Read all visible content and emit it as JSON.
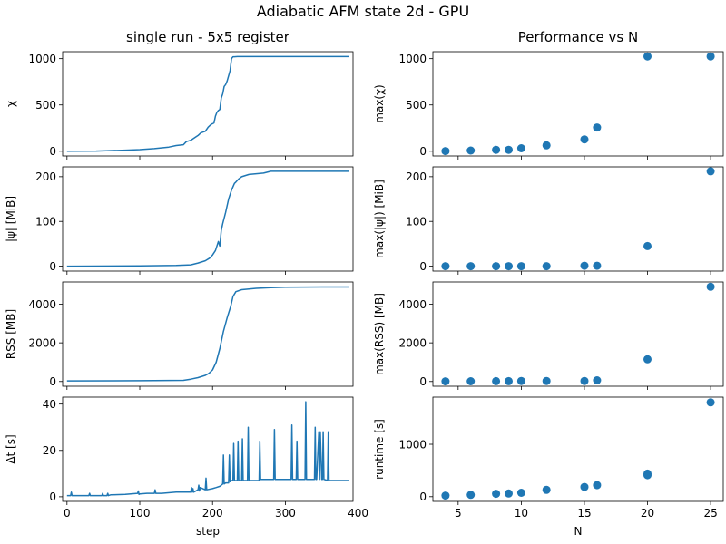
{
  "figure": {
    "suptitle": "Adiabatic AFM state 2d - GPU"
  },
  "chart_data": [
    {
      "id": "chi_step",
      "type": "line",
      "column": "left",
      "title": "single run - 5x5 register",
      "ylabel": "χ",
      "xlabel": "",
      "xlim": [
        -6,
        393
      ],
      "ylim": [
        -51,
        1075
      ],
      "xticks": [
        0,
        100,
        200,
        300,
        400
      ],
      "xtick_labels": [],
      "yticks": [
        0,
        500,
        1000
      ],
      "ytick_labels": [
        "0",
        "500",
        "1000"
      ],
      "x": [
        0,
        40,
        80,
        100,
        120,
        140,
        150,
        160,
        164,
        170,
        176,
        180,
        184,
        190,
        194,
        198,
        202,
        204,
        206,
        208,
        210,
        212,
        214,
        216,
        218,
        220,
        224,
        226,
        228,
        230,
        234,
        250,
        300,
        350,
        388
      ],
      "y": [
        1,
        2,
        12,
        18,
        28,
        45,
        62,
        70,
        104,
        118,
        150,
        170,
        200,
        215,
        260,
        290,
        305,
        380,
        420,
        440,
        450,
        575,
        620,
        700,
        720,
        760,
        870,
        1000,
        1020,
        1020,
        1022,
        1022,
        1022,
        1022,
        1022
      ],
      "color": "#1f77b4"
    },
    {
      "id": "psi_step",
      "type": "line",
      "column": "left",
      "title": "",
      "ylabel": "|ψ| [MiB]",
      "xlabel": "",
      "xlim": [
        -6,
        393
      ],
      "ylim": [
        -11,
        222
      ],
      "xticks": [
        0,
        100,
        200,
        300,
        400
      ],
      "xtick_labels": [],
      "yticks": [
        0,
        100,
        200
      ],
      "ytick_labels": [
        "0",
        "100",
        "200"
      ],
      "x": [
        0,
        100,
        150,
        170,
        180,
        190,
        196,
        200,
        204,
        208,
        210,
        212,
        214,
        218,
        222,
        226,
        230,
        232,
        236,
        240,
        250,
        270,
        280,
        300,
        350,
        388
      ],
      "y": [
        0,
        0.5,
        1.5,
        3,
        7,
        12,
        18,
        25,
        35,
        55,
        45,
        80,
        95,
        120,
        150,
        170,
        185,
        188,
        195,
        200,
        205,
        208,
        212,
        212,
        212,
        212
      ],
      "color": "#1f77b4"
    },
    {
      "id": "rss_step",
      "type": "line",
      "column": "left",
      "title": "",
      "ylabel": "RSS [MB]",
      "xlabel": "",
      "xlim": [
        -6,
        393
      ],
      "ylim": [
        -245,
        5150
      ],
      "xticks": [
        0,
        100,
        200,
        300,
        400
      ],
      "xtick_labels": [],
      "yticks": [
        0,
        2000,
        4000
      ],
      "ytick_labels": [
        "0",
        "2000",
        "4000"
      ],
      "x": [
        0,
        100,
        160,
        170,
        180,
        190,
        195,
        200,
        205,
        210,
        215,
        220,
        225,
        228,
        232,
        240,
        260,
        280,
        300,
        350,
        388
      ],
      "y": [
        30,
        40,
        60,
        120,
        200,
        320,
        420,
        600,
        1000,
        1700,
        2600,
        3300,
        3900,
        4400,
        4650,
        4750,
        4820,
        4860,
        4880,
        4890,
        4890
      ],
      "color": "#1f77b4"
    },
    {
      "id": "dt_step",
      "type": "line",
      "column": "left",
      "title": "",
      "ylabel": "Δt [s]",
      "xlabel": "step",
      "xlim": [
        -6,
        393
      ],
      "ylim": [
        -2,
        43
      ],
      "xticks": [
        0,
        100,
        200,
        300,
        400
      ],
      "xtick_labels": [
        "0",
        "100",
        "200",
        "300",
        "400"
      ],
      "yticks": [
        0,
        20,
        40
      ],
      "ytick_labels": [
        "0",
        "20",
        "40"
      ],
      "x": [
        0,
        5,
        6,
        7,
        10,
        30,
        31,
        32,
        40,
        48,
        49,
        50,
        55,
        56,
        57,
        60,
        80,
        97,
        98,
        99,
        100,
        110,
        120,
        121,
        122,
        130,
        150,
        160,
        170,
        171,
        172,
        173,
        174,
        180,
        181,
        182,
        183,
        190,
        191,
        192,
        200,
        205,
        210,
        214,
        215,
        216,
        218,
        222,
        223,
        224,
        226,
        228,
        229,
        230,
        234,
        235,
        236,
        238,
        240,
        241,
        242,
        244,
        246,
        248,
        249,
        250,
        260,
        264,
        265,
        266,
        270,
        280,
        284,
        285,
        286,
        290,
        300,
        308,
        309,
        310,
        315,
        316,
        317,
        320,
        327,
        328,
        329,
        335,
        340,
        341,
        342,
        343,
        346,
        347,
        348,
        350,
        351,
        352,
        353,
        358,
        359,
        360,
        362,
        365,
        370,
        380,
        388
      ],
      "y": [
        0.5,
        0.5,
        2,
        0.5,
        0.5,
        0.5,
        1.5,
        0.5,
        0.5,
        0.5,
        1.5,
        0.5,
        0.5,
        1.5,
        0.5,
        0.8,
        1,
        1.5,
        2.5,
        1,
        1.2,
        1.5,
        1.5,
        3,
        1.5,
        1.5,
        2,
        2,
        2,
        4,
        2,
        3.5,
        2,
        3,
        5,
        2.5,
        4,
        3,
        8,
        3,
        3.5,
        4,
        4.5,
        5.5,
        18,
        5.5,
        6,
        6,
        18,
        6.5,
        7,
        7,
        23,
        7,
        7,
        24,
        7,
        7,
        7,
        25,
        7,
        7,
        7,
        7,
        30,
        7,
        7,
        7,
        24,
        7.5,
        7.5,
        7.5,
        7.5,
        29,
        7.5,
        7.5,
        7.5,
        7.5,
        31,
        7.5,
        7.5,
        24,
        7.5,
        7.5,
        7.5,
        41,
        7.5,
        7.5,
        7.5,
        30,
        7.5,
        7.5,
        28,
        7.5,
        28,
        7.5,
        7.5,
        28,
        7.5,
        7,
        28,
        7,
        7,
        7,
        7,
        7,
        7
      ],
      "color": "#1f77b4"
    },
    {
      "id": "max_chi_N",
      "type": "scatter",
      "column": "right",
      "title": "Performance vs N",
      "ylabel": "max(χ)",
      "xlabel": "",
      "xlim": [
        3.0,
        26.0
      ],
      "ylim": [
        -51,
        1075
      ],
      "xticks": [
        5,
        10,
        15,
        20,
        25
      ],
      "xtick_labels": [],
      "yticks": [
        0,
        500,
        1000
      ],
      "ytick_labels": [
        "0",
        "500",
        "1000"
      ],
      "x": [
        4,
        6,
        8,
        9,
        10,
        12,
        15,
        16,
        20,
        25
      ],
      "y": [
        2,
        8,
        16,
        16,
        32,
        64,
        128,
        256,
        1024,
        1024
      ],
      "color": "#1f77b4"
    },
    {
      "id": "max_psi_N",
      "type": "scatter",
      "column": "right",
      "title": "",
      "ylabel": "max(|ψ|) [MiB]",
      "xlabel": "",
      "xlim": [
        3.0,
        26.0
      ],
      "ylim": [
        -11,
        222
      ],
      "xticks": [
        5,
        10,
        15,
        20,
        25
      ],
      "xtick_labels": [],
      "yticks": [
        0,
        100,
        200
      ],
      "ytick_labels": [
        "0",
        "100",
        "200"
      ],
      "x": [
        4,
        6,
        8,
        9,
        10,
        12,
        15,
        16,
        20,
        25
      ],
      "y": [
        0,
        0,
        0,
        0,
        0,
        0,
        1,
        1,
        45,
        212
      ],
      "color": "#1f77b4"
    },
    {
      "id": "max_rss_N",
      "type": "scatter",
      "column": "right",
      "title": "",
      "ylabel": "max(RSS) [MB]",
      "xlabel": "",
      "xlim": [
        3.0,
        26.0
      ],
      "ylim": [
        -245,
        5150
      ],
      "xticks": [
        5,
        10,
        15,
        20,
        25
      ],
      "xtick_labels": [],
      "yticks": [
        0,
        2000,
        4000
      ],
      "ytick_labels": [
        "0",
        "2000",
        "4000"
      ],
      "x": [
        4,
        6,
        8,
        9,
        10,
        12,
        15,
        16,
        20,
        25
      ],
      "y": [
        10,
        15,
        20,
        20,
        25,
        25,
        25,
        60,
        1150,
        4900
      ],
      "color": "#1f77b4"
    },
    {
      "id": "runtime_N",
      "type": "scatter",
      "column": "right",
      "title": "",
      "ylabel": "runtime [s]",
      "xlabel": "N",
      "xlim": [
        3.0,
        26.0
      ],
      "ylim": [
        -90,
        1900
      ],
      "xticks": [
        5,
        10,
        15,
        20,
        25
      ],
      "xtick_labels": [
        "5",
        "10",
        "15",
        "20",
        "25"
      ],
      "yticks": [
        0,
        1000
      ],
      "ytick_labels": [
        "0",
        "1000"
      ],
      "x": [
        4,
        6,
        8,
        9,
        10,
        12,
        15,
        16,
        20,
        20,
        25
      ],
      "y": [
        20,
        35,
        55,
        60,
        75,
        130,
        185,
        220,
        410,
        440,
        1800
      ],
      "color": "#1f77b4"
    }
  ]
}
